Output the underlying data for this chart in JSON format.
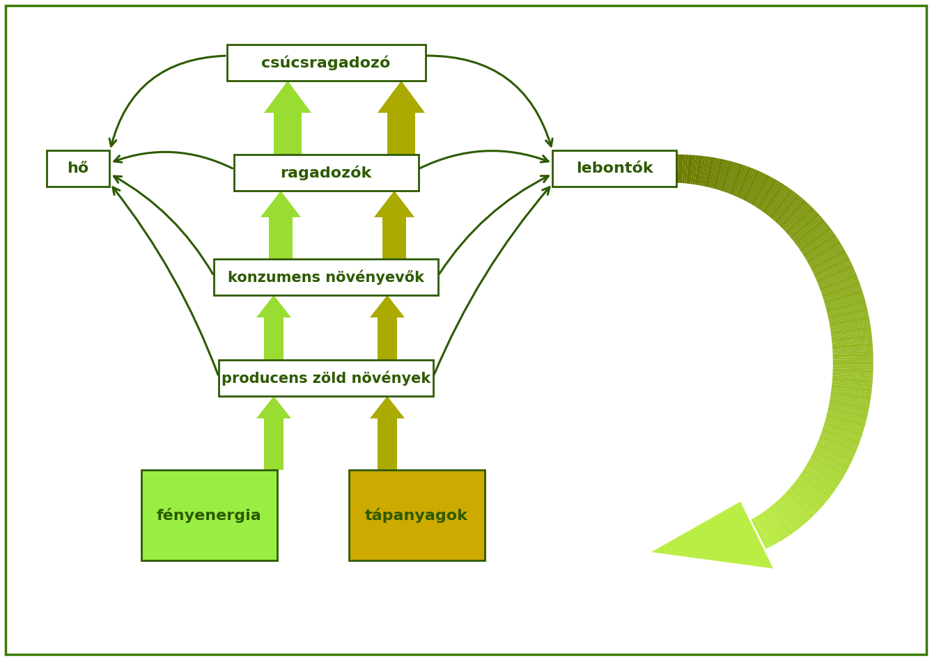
{
  "bg_color": "#ffffff",
  "border_color": "#3a7a00",
  "box_border_color": "#2d5a00",
  "dark_green": "#2d5a00",
  "light_green_arrow": "#99dd33",
  "olive_arrow": "#aaaa00",
  "fenyenergia_color": "#99ee44",
  "tapanyagok_color": "#ccaa00",
  "labels": {
    "csucsragadozo": "csúcsragadozó",
    "ragadozok": "ragadozók",
    "konzumens": "konzumens növényevők",
    "producens": "producens zöld növények",
    "ho": "hő",
    "lebontok": "lebontók",
    "fenyenergia": "fényenergia",
    "tapanyagok": "tápanyagok"
  },
  "figsize": [
    13.38,
    9.48
  ],
  "dpi": 100
}
